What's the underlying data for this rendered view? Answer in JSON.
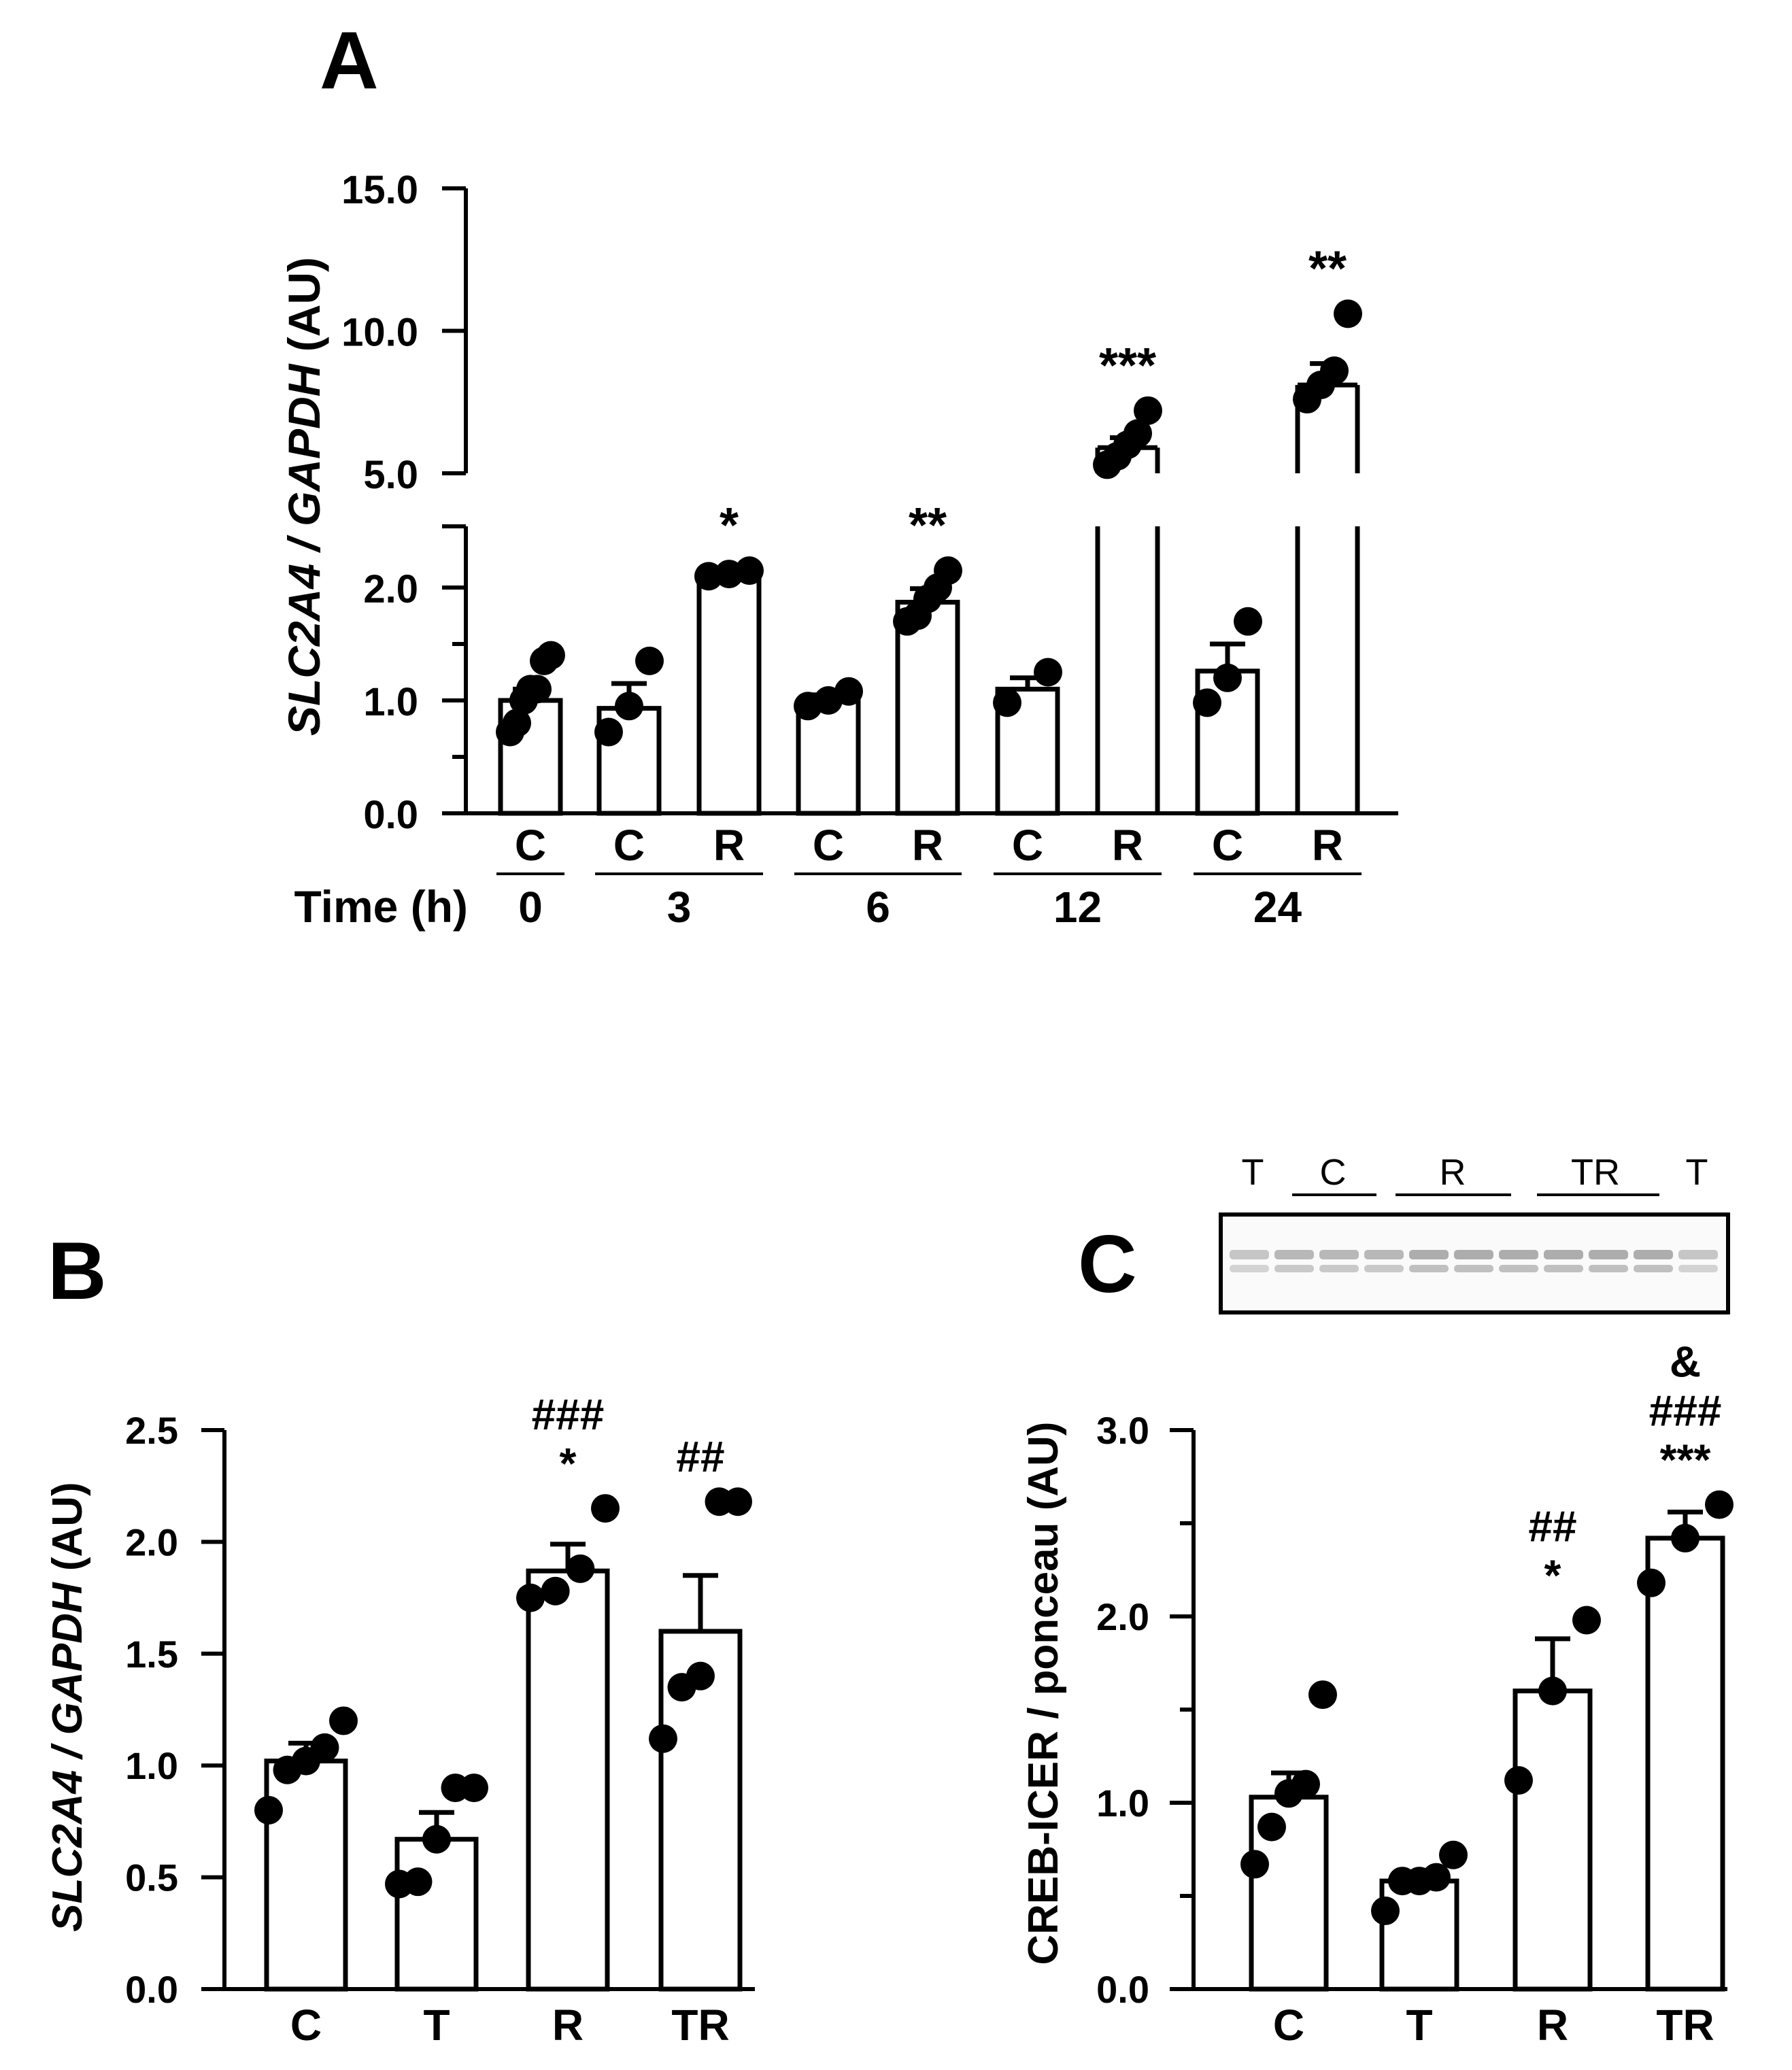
{
  "panels": {
    "a": "A",
    "b": "B",
    "c": "C"
  },
  "chart_data": [
    {
      "id": "A",
      "type": "bar",
      "ylabel_italic": "SLC2A4 / GAPDH",
      "ylabel_suffix": " (AU)",
      "y_ticks_lower": [
        "0.0",
        "1.0",
        "2.0"
      ],
      "y_ticks_upper": [
        "5.0",
        "10.0",
        "15.0"
      ],
      "y_tick_values_lower": [
        0,
        1,
        2
      ],
      "y_tick_values_upper": [
        5,
        10,
        15
      ],
      "ylim_lower": [
        0,
        2.5
      ],
      "ylim_upper": [
        5,
        15
      ],
      "axis_break": true,
      "xlabel_title": "Time (h)",
      "bars": [
        {
          "group": "C",
          "time": "0",
          "mean": 1.0,
          "sem": 0.1,
          "points": [
            0.72,
            0.8,
            1.0,
            1.1,
            1.1,
            1.35,
            1.4
          ],
          "sig": ""
        },
        {
          "group": "C",
          "time": "3",
          "mean": 0.93,
          "sem": 0.22,
          "points": [
            0.72,
            0.95,
            1.35
          ],
          "sig": ""
        },
        {
          "group": "R",
          "time": "3",
          "mean": 2.12,
          "sem": 0.03,
          "points": [
            2.1,
            2.12,
            2.15
          ],
          "sig": "*"
        },
        {
          "group": "C",
          "time": "6",
          "mean": 1.0,
          "sem": 0.05,
          "points": [
            0.95,
            1.0,
            1.08
          ],
          "sig": ""
        },
        {
          "group": "R",
          "time": "6",
          "mean": 1.87,
          "sem": 0.12,
          "points": [
            1.7,
            1.75,
            1.9,
            2.0,
            2.15
          ],
          "sig": "**"
        },
        {
          "group": "C",
          "time": "12",
          "mean": 1.1,
          "sem": 0.1,
          "points": [
            0.98,
            1.25
          ],
          "sig": ""
        },
        {
          "group": "R",
          "time": "12",
          "mean": 5.9,
          "sem": 0.35,
          "points": [
            5.3,
            5.6,
            6.0,
            6.4,
            7.2
          ],
          "sig": "***"
        },
        {
          "group": "C",
          "time": "24",
          "mean": 1.26,
          "sem": 0.24,
          "points": [
            0.98,
            1.2,
            1.7
          ],
          "sig": ""
        },
        {
          "group": "R",
          "time": "24",
          "mean": 8.1,
          "sem": 0.75,
          "points": [
            7.6,
            8.1,
            8.6,
            10.6
          ],
          "sig": "**"
        }
      ],
      "time_groups": [
        "0",
        "3",
        "6",
        "12",
        "24"
      ]
    },
    {
      "id": "B",
      "type": "bar",
      "ylabel_italic": "SLC2A4 / GAPDH",
      "ylabel_suffix": " (AU)",
      "y_ticks": [
        "0.0",
        "0.5",
        "1.0",
        "1.5",
        "2.0",
        "2.5"
      ],
      "y_tick_values": [
        0,
        0.5,
        1.0,
        1.5,
        2.0,
        2.5
      ],
      "ylim": [
        0,
        2.5
      ],
      "categories": [
        "C",
        "T",
        "R",
        "TR"
      ],
      "bars": [
        {
          "mean": 1.02,
          "sem": 0.08,
          "points": [
            0.8,
            0.98,
            1.02,
            1.08,
            1.2
          ],
          "sig": []
        },
        {
          "mean": 0.67,
          "sem": 0.12,
          "points": [
            0.47,
            0.48,
            0.67,
            0.9,
            0.9
          ],
          "sig": []
        },
        {
          "mean": 1.87,
          "sem": 0.12,
          "points": [
            1.75,
            1.78,
            1.88,
            2.15
          ],
          "sig": [
            "###",
            "*"
          ]
        },
        {
          "mean": 1.6,
          "sem": 0.25,
          "points": [
            1.12,
            1.35,
            1.4,
            2.18,
            2.18
          ],
          "sig": [
            "##"
          ]
        }
      ]
    },
    {
      "id": "C",
      "type": "bar",
      "ylabel": "CREB-ICER / ponceau (AU)",
      "y_ticks": [
        "0.0",
        "1.0",
        "2.0",
        "3.0"
      ],
      "y_tick_values": [
        0,
        1.0,
        2.0,
        3.0
      ],
      "ylim": [
        0,
        3.0
      ],
      "categories": [
        "C",
        "T",
        "R",
        "TR"
      ],
      "bars": [
        {
          "mean": 1.03,
          "sem": 0.13,
          "points": [
            0.67,
            0.87,
            1.05,
            1.1,
            1.58
          ],
          "sig": []
        },
        {
          "mean": 0.58,
          "sem": 0.03,
          "points": [
            0.42,
            0.58,
            0.58,
            0.6,
            0.72
          ],
          "sig": []
        },
        {
          "mean": 1.6,
          "sem": 0.28,
          "points": [
            1.12,
            1.6,
            1.98
          ],
          "sig": [
            "##",
            "*"
          ]
        },
        {
          "mean": 2.42,
          "sem": 0.14,
          "points": [
            2.18,
            2.42,
            2.6
          ],
          "sig": [
            "&",
            "###",
            "***"
          ]
        }
      ],
      "blot_labels": [
        "T",
        "C",
        "R",
        "TR",
        "T"
      ]
    }
  ]
}
